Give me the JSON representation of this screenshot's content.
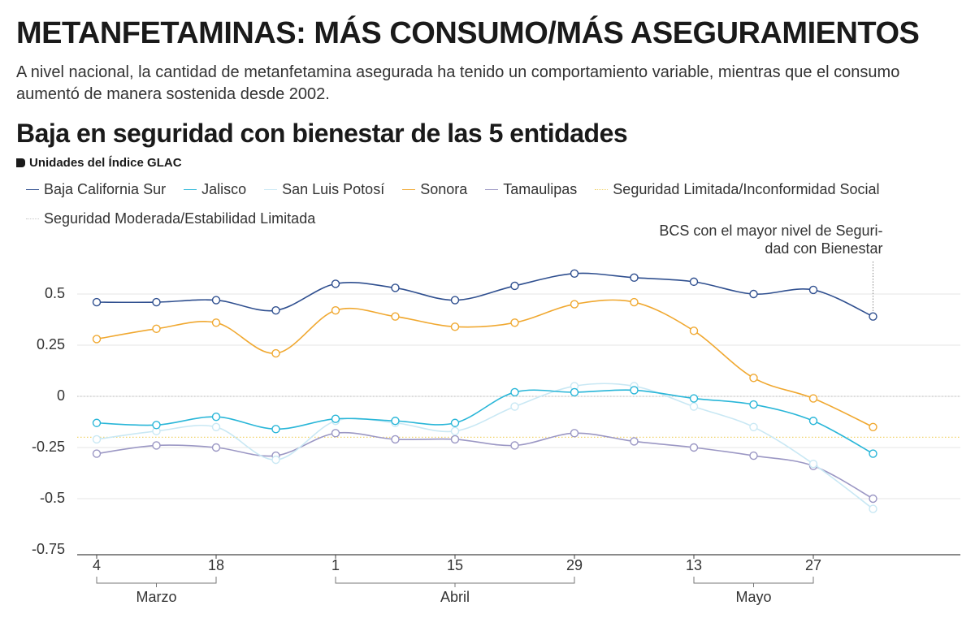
{
  "header": {
    "title": "METANFETAMINAS: MÁS CONSUMO/MÁS ASEGURAMIENTOS",
    "subtitle": "A nivel nacional, la cantidad de metanfetamina asegurada ha tenido un comportamiento variable, mientras que el consumo aumentó de manera sostenida desde 2002."
  },
  "chart_data": {
    "type": "line",
    "title": "Baja en seguridad con bienestar de las 5 entidades",
    "y_label": "Unidades del Índice GLAC",
    "categories": [
      "4",
      null,
      "18",
      null,
      "1",
      null,
      "15",
      null,
      "29",
      null,
      "13",
      null,
      "27",
      null
    ],
    "month_groups": [
      {
        "label": "Marzo",
        "first": 0,
        "last": 2
      },
      {
        "label": "Abril",
        "first": 4,
        "last": 8
      },
      {
        "label": "Mayo",
        "first": 10,
        "last": 12
      }
    ],
    "series": [
      {
        "name": "Baja California Sur",
        "color": "#2f4f8f",
        "values": [
          0.46,
          0.46,
          0.47,
          0.42,
          0.55,
          0.53,
          0.47,
          0.54,
          0.6,
          0.58,
          0.56,
          0.5,
          0.52,
          0.39
        ]
      },
      {
        "name": "Jalisco",
        "color": "#29b6d8",
        "values": [
          -0.13,
          -0.14,
          -0.1,
          -0.16,
          -0.11,
          -0.12,
          -0.13,
          0.02,
          0.02,
          0.03,
          -0.01,
          -0.04,
          -0.12,
          -0.28
        ]
      },
      {
        "name": "San Luis Potosí",
        "color": "#c9e8f4",
        "values": [
          -0.21,
          -0.17,
          -0.15,
          -0.31,
          -0.12,
          -0.13,
          -0.17,
          -0.05,
          0.05,
          0.05,
          -0.05,
          -0.15,
          -0.33,
          -0.55
        ]
      },
      {
        "name": "Sonora",
        "color": "#f0a830",
        "values": [
          0.28,
          0.33,
          0.36,
          0.21,
          0.42,
          0.39,
          0.34,
          0.36,
          0.45,
          0.46,
          0.32,
          0.09,
          -0.01,
          -0.15
        ]
      },
      {
        "name": "Tamaulipas",
        "color": "#9b97c4",
        "values": [
          -0.28,
          -0.24,
          -0.25,
          -0.29,
          -0.18,
          -0.21,
          -0.21,
          -0.24,
          -0.18,
          -0.22,
          -0.25,
          -0.29,
          -0.34,
          -0.5
        ]
      }
    ],
    "reference_lines": [
      {
        "name": "Seguridad Limitada/Inconformidad Social",
        "color": "#f2d36b",
        "value": -0.2
      },
      {
        "name": "Seguridad Moderada/Estabilidad Limitada",
        "color": "#c8c8c8",
        "value": 0
      }
    ],
    "annotation": [
      "BCS con el mayor nivel de Seguri-",
      "dad con Bienestar"
    ],
    "ylim": [
      -0.75,
      0.75
    ],
    "yticks": [
      -0.75,
      -0.5,
      -0.25,
      0,
      0.25,
      0.5
    ],
    "grid": true
  }
}
